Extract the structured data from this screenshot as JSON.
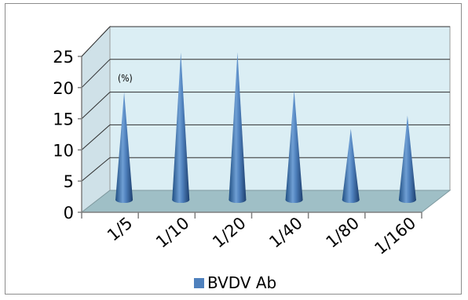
{
  "chart_data": {
    "type": "bar",
    "bar_shape": "cone",
    "three_d": true,
    "categories": [
      "1/5",
      "1/10",
      "1/20",
      "1/40",
      "1/80",
      "1/160"
    ],
    "series": [
      {
        "name": "BVDV Ab",
        "values": [
          17,
          23.3,
          23.3,
          17.3,
          11.2,
          13.3
        ],
        "color": "#4f81bd"
      }
    ],
    "annotation": "(%)",
    "ylim": [
      0,
      25
    ],
    "yticks": [
      0,
      5,
      10,
      15,
      20,
      25
    ],
    "grid": true,
    "legend": "bottom",
    "wall_color": "#dbeef4",
    "floor_color": "#9fbfc6"
  }
}
